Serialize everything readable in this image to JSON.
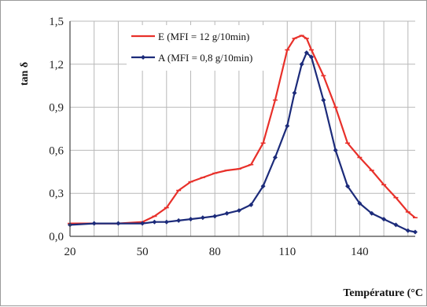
{
  "chart_data": {
    "type": "line",
    "xlabel": "Température (°C",
    "ylabel": "tan δ",
    "xlim": [
      20,
      163
    ],
    "ylim": [
      0,
      1.5
    ],
    "xticks": [
      20,
      50,
      80,
      110,
      140
    ],
    "xtick_labels": [
      "20",
      "50",
      "80",
      "110",
      "140"
    ],
    "yticks": [
      0,
      0.3,
      0.6,
      0.9,
      1.2,
      1.5
    ],
    "ytick_labels": [
      "0,0",
      "0,3",
      "0,6",
      "0,9",
      "1,2",
      "1,5"
    ],
    "x_grid": [
      30,
      40,
      50,
      60,
      70,
      80,
      90,
      100,
      110,
      120,
      130,
      140,
      150,
      160
    ],
    "y_grid": [
      0,
      0.3,
      0.6,
      0.9,
      1.2,
      1.5
    ],
    "grid": true,
    "legend_position": "top-left",
    "series": [
      {
        "name": "E (MFI = 12 g/10min)",
        "color": "#e8302a",
        "x": [
          20,
          30,
          40,
          50,
          55,
          60,
          65,
          70,
          75,
          80,
          85,
          90,
          95,
          100,
          105,
          110,
          113,
          116,
          118,
          120,
          125,
          130,
          135,
          140,
          145,
          150,
          155,
          160,
          163
        ],
        "y": [
          0.09,
          0.09,
          0.09,
          0.1,
          0.14,
          0.2,
          0.32,
          0.38,
          0.41,
          0.44,
          0.46,
          0.47,
          0.5,
          0.65,
          0.95,
          1.3,
          1.38,
          1.4,
          1.38,
          1.3,
          1.12,
          0.9,
          0.65,
          0.55,
          0.46,
          0.36,
          0.27,
          0.17,
          0.13
        ]
      },
      {
        "name": "A (MFI = 0,8 g/10min)",
        "color": "#1c2b7a",
        "x": [
          20,
          30,
          40,
          50,
          55,
          60,
          65,
          70,
          75,
          80,
          85,
          90,
          95,
          100,
          105,
          110,
          113,
          116,
          118,
          120,
          125,
          130,
          135,
          140,
          145,
          150,
          155,
          160,
          163
        ],
        "y": [
          0.08,
          0.09,
          0.09,
          0.09,
          0.1,
          0.1,
          0.11,
          0.12,
          0.13,
          0.14,
          0.16,
          0.18,
          0.22,
          0.35,
          0.55,
          0.77,
          1.0,
          1.2,
          1.28,
          1.25,
          0.95,
          0.6,
          0.35,
          0.23,
          0.16,
          0.12,
          0.08,
          0.04,
          0.03
        ]
      }
    ]
  }
}
